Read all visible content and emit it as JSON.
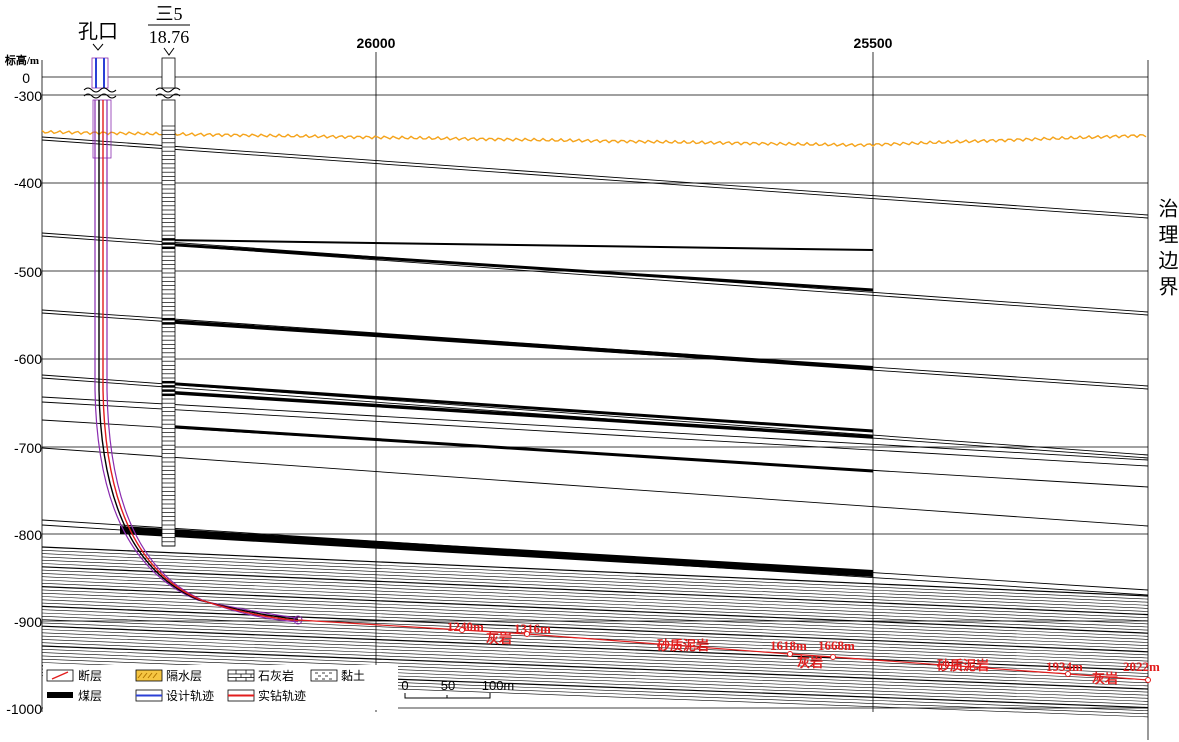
{
  "well": {
    "label": "孔口"
  },
  "borehole": {
    "label_top": "三5",
    "label_bottom": "18.76"
  },
  "axis": {
    "title": "标高/m",
    "elevation_ticks": [
      "0",
      "-300",
      "-400",
      "-500",
      "-600",
      "-700",
      "-800",
      "-900",
      "-1000"
    ],
    "coordinate_ticks": [
      "26000",
      "25500"
    ]
  },
  "boundary_label": "治理边界",
  "annotations": [
    {
      "text": "1240m",
      "kind": "depth"
    },
    {
      "text": "1316m",
      "kind": "depth"
    },
    {
      "text": "灰岩",
      "kind": "lithology"
    },
    {
      "text": "砂质泥岩",
      "kind": "lithology"
    },
    {
      "text": "1618m",
      "kind": "depth"
    },
    {
      "text": "1668m",
      "kind": "depth"
    },
    {
      "text": "灰岩",
      "kind": "lithology"
    },
    {
      "text": "砂质泥岩",
      "kind": "lithology"
    },
    {
      "text": "1934m",
      "kind": "depth"
    },
    {
      "text": "2022m",
      "kind": "depth"
    },
    {
      "text": "灰岩",
      "kind": "lithology"
    }
  ],
  "legend": [
    {
      "label": "断层",
      "symbol": "fault"
    },
    {
      "label": "隔水层",
      "symbol": "aquiclude"
    },
    {
      "label": "石灰岩",
      "symbol": "limestone"
    },
    {
      "label": "黏土",
      "symbol": "clay"
    },
    {
      "label": "煤层",
      "symbol": "coal-seam"
    },
    {
      "label": "设计轨迹",
      "symbol": "design-trajectory"
    },
    {
      "label": "实钻轨迹",
      "symbol": "actual-trajectory"
    }
  ],
  "scale_bar": {
    "labels": [
      "0",
      "50",
      "100m"
    ]
  },
  "colors": {
    "design_trajectory": "#2b3fd6",
    "actual_trajectory": "#e21d1d",
    "well_outline": "#8a2bb0",
    "annotation": "#e21d1d",
    "aquiclude": "#f5a31a"
  }
}
